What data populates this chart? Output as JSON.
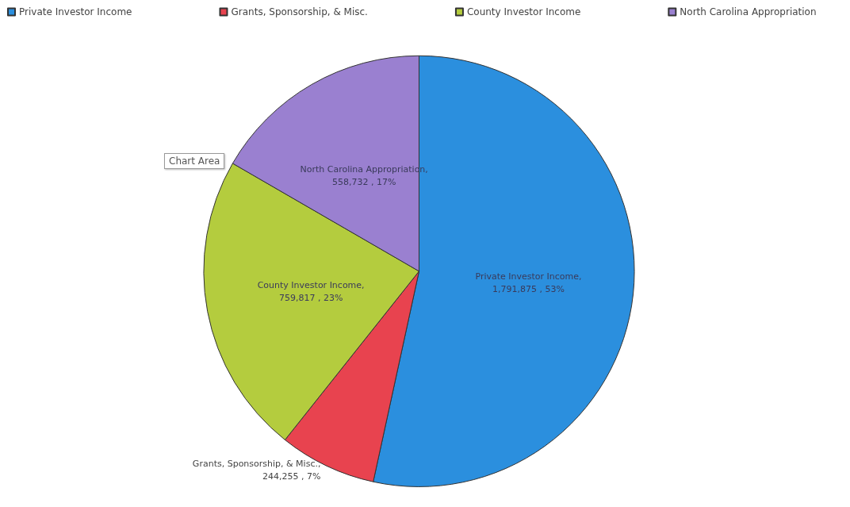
{
  "chart_data": {
    "type": "pie",
    "categories": [
      "Private Investor Income",
      "Grants, Sponsorship, & Misc.",
      "County Investor Income",
      "North Carolina Appropriation"
    ],
    "values": [
      1791875,
      244255,
      759817,
      558732
    ],
    "colors": [
      "#2b8fde",
      "#e8434f",
      "#b4cc3e",
      "#9a80d0"
    ],
    "value_labels": [
      "Private Investor Income, 1,791,875 , 53%",
      "Grants, Sponsorship, & Misc., 244,255 , 7%",
      "County Investor Income, 759,817 , 23%",
      "North Carolina Appropriation, 558,732 , 17%"
    ],
    "legend": "top",
    "annotations": [
      "Chart Area"
    ]
  }
}
